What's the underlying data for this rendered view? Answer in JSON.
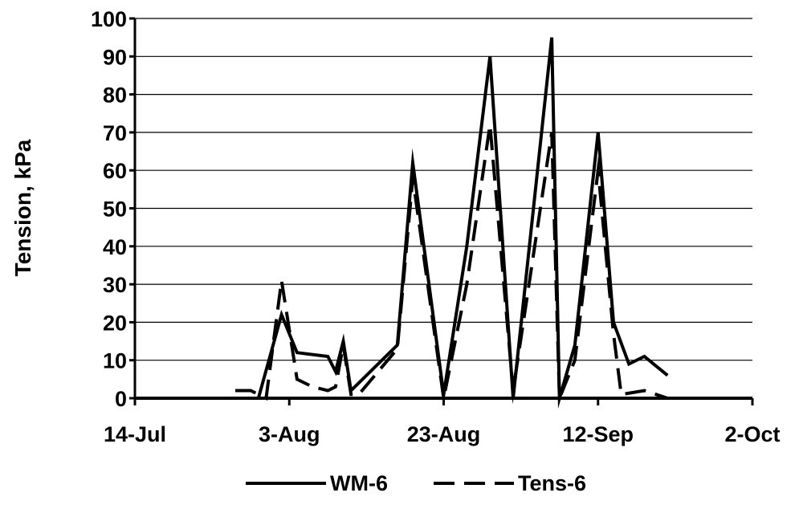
{
  "chart_data": {
    "type": "line",
    "title": "",
    "xlabel": "",
    "ylabel": "Tension, kPa",
    "xlim": [
      "2005-07-14",
      "2005-10-02"
    ],
    "ylim": [
      0,
      100
    ],
    "y_ticks": [
      0,
      10,
      20,
      30,
      40,
      50,
      60,
      70,
      80,
      90,
      100
    ],
    "x_ticks": [
      {
        "date": "2005-07-14",
        "label": "14-Jul"
      },
      {
        "date": "2005-08-03",
        "label": "3-Aug"
      },
      {
        "date": "2005-08-23",
        "label": "23-Aug"
      },
      {
        "date": "2005-09-12",
        "label": "12-Sep"
      },
      {
        "date": "2005-10-02",
        "label": "2-Oct"
      }
    ],
    "grid": "horizontal",
    "legend_position": "bottom",
    "series": [
      {
        "name": "WM-6",
        "style": "solid",
        "color": "#000000",
        "points": [
          [
            "2005-07-27",
            0
          ],
          [
            "2005-07-30",
            0
          ],
          [
            "2005-08-02",
            22
          ],
          [
            "2005-08-04",
            12
          ],
          [
            "2005-08-08",
            11
          ],
          [
            "2005-08-09",
            7
          ],
          [
            "2005-08-10",
            15
          ],
          [
            "2005-08-11",
            2
          ],
          [
            "2005-08-17",
            14
          ],
          [
            "2005-08-19",
            62
          ],
          [
            "2005-08-23",
            1
          ],
          [
            "2005-08-26",
            40
          ],
          [
            "2005-08-29",
            90
          ],
          [
            "2005-09-01",
            0
          ],
          [
            "2005-09-06",
            95
          ],
          [
            "2005-09-07",
            0
          ],
          [
            "2005-09-09",
            14
          ],
          [
            "2005-09-12",
            70
          ],
          [
            "2005-09-14",
            20
          ],
          [
            "2005-09-16",
            9
          ],
          [
            "2005-09-18",
            11
          ],
          [
            "2005-09-21",
            6
          ]
        ]
      },
      {
        "name": "Tens-6",
        "style": "dashed",
        "color": "#000000",
        "points": [
          [
            "2005-07-27",
            2
          ],
          [
            "2005-07-29",
            2
          ],
          [
            "2005-07-31",
            0
          ],
          [
            "2005-08-02",
            31
          ],
          [
            "2005-08-03",
            18
          ],
          [
            "2005-08-04",
            5
          ],
          [
            "2005-08-06",
            3
          ],
          [
            "2005-08-08",
            2
          ],
          [
            "2005-08-09",
            3
          ],
          [
            "2005-08-10",
            14
          ],
          [
            "2005-08-11",
            1
          ],
          [
            "2005-08-12",
            1
          ],
          [
            "2005-08-17",
            13
          ],
          [
            "2005-08-19",
            58
          ],
          [
            "2005-08-23",
            0
          ],
          [
            "2005-08-26",
            30
          ],
          [
            "2005-08-29",
            72
          ],
          [
            "2005-09-01",
            2
          ],
          [
            "2005-09-06",
            70
          ],
          [
            "2005-09-07",
            0
          ],
          [
            "2005-09-09",
            10
          ],
          [
            "2005-09-12",
            60
          ],
          [
            "2005-09-14",
            17
          ],
          [
            "2005-09-15",
            1
          ],
          [
            "2005-09-18",
            2
          ],
          [
            "2005-09-21",
            0
          ]
        ]
      }
    ]
  }
}
